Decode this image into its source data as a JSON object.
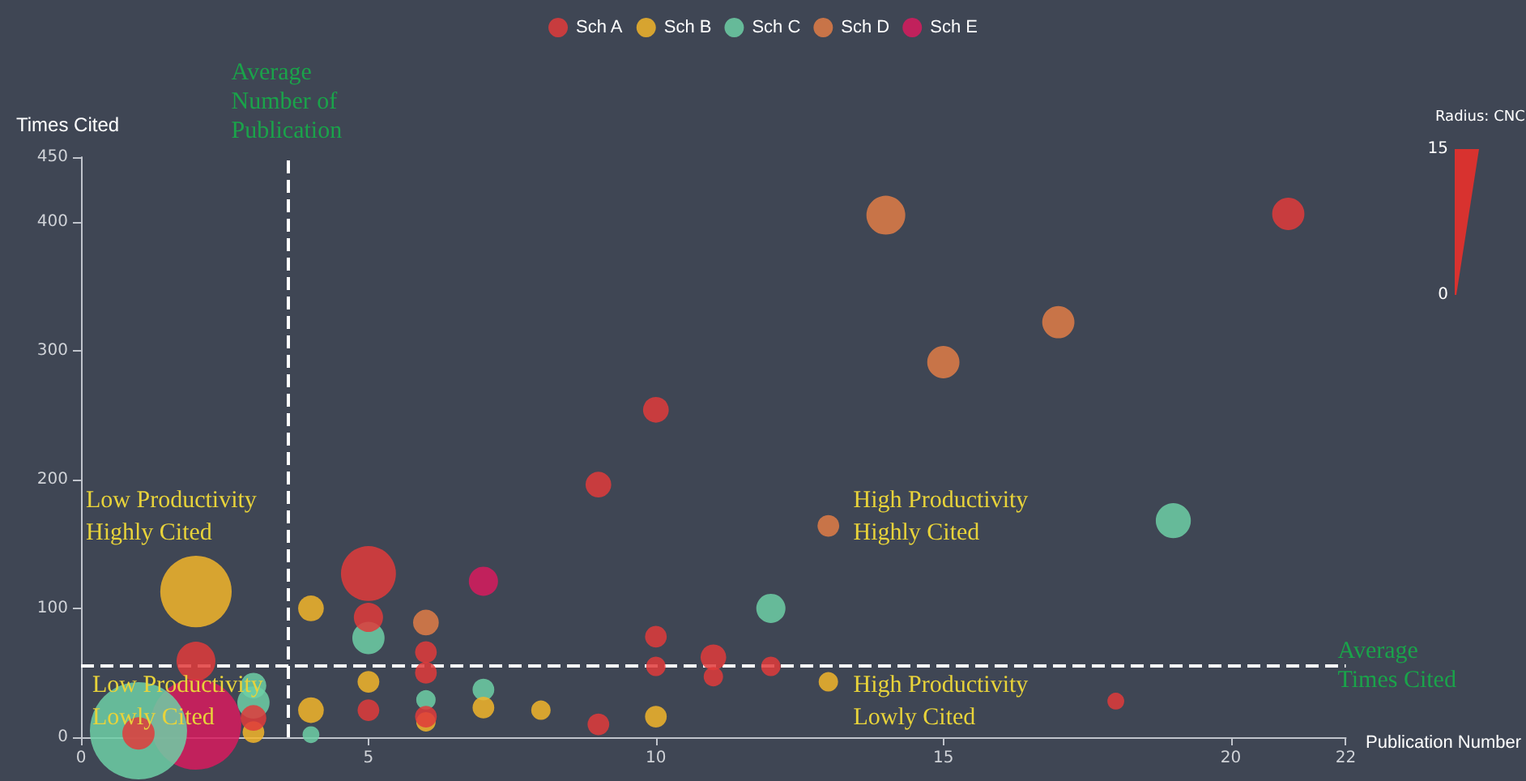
{
  "chart_data": {
    "type": "bubble",
    "xlabel": "Publication Number",
    "ylabel": "Times Cited",
    "legend_title": "Radius: CNCI",
    "xlim": [
      0,
      22
    ],
    "xticks": [
      0,
      5,
      10,
      15,
      20,
      22
    ],
    "ylim": [
      0,
      450
    ],
    "yticks": [
      0,
      100,
      200,
      300,
      400,
      450
    ],
    "grid": false,
    "legend": "top",
    "marker": "circle",
    "series": [
      {
        "name": "Sch A",
        "color": "#e03b3b",
        "x": [
          5,
          5,
          5,
          6,
          6,
          6,
          2,
          1,
          9,
          9,
          10,
          10,
          10,
          11,
          11,
          12,
          18,
          21,
          3
        ],
        "values": [
          127,
          93,
          21,
          66,
          50,
          16,
          59,
          3,
          10,
          196,
          254,
          78,
          55,
          62,
          47,
          55,
          28,
          406,
          15
        ],
        "sizes": [
          0.32,
          0.09,
          0.05,
          0.05,
          0.05,
          0.05,
          0.16,
          0.11,
          0.05,
          0.07,
          0.07,
          0.05,
          0.04,
          0.07,
          0.04,
          0.04,
          0.03,
          0.11,
          0.07
        ]
      },
      {
        "name": "Sch B",
        "color": "#f2b52a",
        "x": [
          2,
          4,
          5,
          4,
          6,
          7,
          8,
          10,
          13,
          3
        ],
        "values": [
          113,
          100,
          43,
          21,
          12,
          23,
          21,
          16,
          43,
          4
        ],
        "sizes": [
          0.54,
          0.07,
          0.05,
          0.07,
          0.04,
          0.05,
          0.04,
          0.05,
          0.04,
          0.05
        ]
      },
      {
        "name": "Sch C",
        "color": "#6dcfa6",
        "x": [
          1,
          3,
          3,
          4,
          5,
          6,
          7,
          12,
          19
        ],
        "values": [
          5,
          40,
          27,
          2,
          77,
          29,
          37,
          100,
          168
        ],
        "sizes": [
          1,
          0.07,
          0.11,
          0.03,
          0.11,
          0.04,
          0.05,
          0.09,
          0.13
        ]
      },
      {
        "name": "Sch D",
        "color": "#e07d47",
        "x": [
          6,
          13,
          14,
          15,
          17
        ],
        "values": [
          89,
          164,
          405,
          291,
          322
        ],
        "sizes": [
          0.07,
          0.05,
          0.16,
          0.11,
          0.11
        ]
      },
      {
        "name": "Sch E",
        "color": "#d81b5e",
        "x": [
          2,
          7
        ],
        "values": [
          10,
          121
        ],
        "sizes": [
          0.87,
          0.09
        ]
      }
    ],
    "ref_lines": [
      {
        "axis": "x",
        "value": 3.6,
        "label": "Average\nNumber of\nPublication",
        "color": "#ffffff",
        "line_style": "dashed"
      },
      {
        "axis": "y",
        "value": 55,
        "label": "Average\nTimes Cited",
        "color": "#ffffff",
        "line_style": "dashed"
      }
    ],
    "annotations": [
      "Low Productivity\nHighly Cited",
      "Low Productivity\nLowly Cited",
      "High Productivity\nHighly Cited",
      "High Productivity\nLowly Cited",
      "15",
      "0"
    ]
  }
}
